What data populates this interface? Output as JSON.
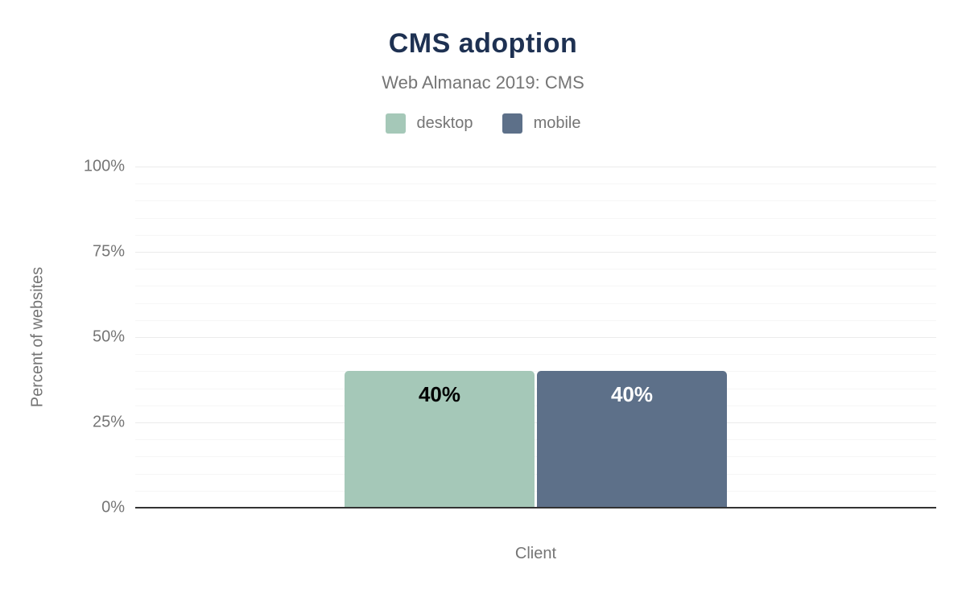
{
  "chart_data": {
    "type": "bar",
    "title": "CMS adoption",
    "subtitle": "Web Almanac 2019: CMS",
    "categories": [
      ""
    ],
    "series": [
      {
        "name": "desktop",
        "values": [
          40
        ],
        "data_labels": [
          "40%"
        ],
        "color": "#a5c8b8",
        "label_color": "#000000"
      },
      {
        "name": "mobile",
        "values": [
          40
        ],
        "data_labels": [
          "40%"
        ],
        "color": "#5d7089",
        "label_color": "#ffffff"
      }
    ],
    "xlabel": "Client",
    "ylabel": "Percent of websites",
    "ylim": [
      0,
      100
    ],
    "yticks": [
      0,
      25,
      50,
      75,
      100
    ],
    "ytick_labels": [
      "0%",
      "25%",
      "50%",
      "75%",
      "100%"
    ],
    "minor_grid_step": 5,
    "grid": true,
    "legend_position": "top",
    "title_color": "#1e3152",
    "text_color": "#757575",
    "axis_line_color": "#333333"
  }
}
